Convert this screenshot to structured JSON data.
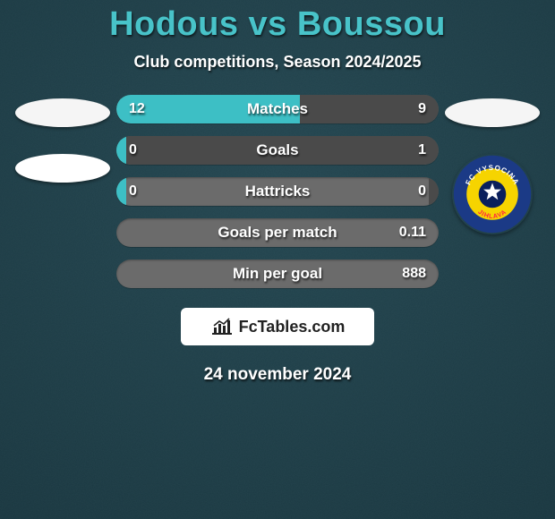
{
  "colors": {
    "bg_main": "#1a3740",
    "bg_noise": "#244650",
    "title_color": "#48c3c9",
    "subtitle_color": "#ffffff",
    "row_bg": "#6b6b6b",
    "fill_left": "#3dbfc5",
    "fill_right": "#4a4a4a",
    "branding_bg": "#ffffff",
    "branding_text": "#222222",
    "ellipse_left_1": "#f5f5f5",
    "ellipse_left_2": "#ffffff",
    "ellipse_right_1": "#f5f5f5",
    "club_ring": "#1b3a86",
    "club_inner": "#f6d400",
    "club_text": "#ffffff",
    "club_ball": "#0a1f5c"
  },
  "title": "Hodous vs Boussou",
  "subtitle": "Club competitions, Season 2024/2025",
  "rows": [
    {
      "label": "Matches",
      "left": "12",
      "right": "9",
      "left_pct": 57,
      "right_pct": 43
    },
    {
      "label": "Goals",
      "left": "0",
      "right": "1",
      "left_pct": 3,
      "right_pct": 97
    },
    {
      "label": "Hattricks",
      "left": "0",
      "right": "0",
      "left_pct": 3,
      "right_pct": 3
    },
    {
      "label": "Goals per match",
      "left": "",
      "right": "0.11",
      "left_pct": 0,
      "right_pct": 0
    },
    {
      "label": "Min per goal",
      "left": "",
      "right": "888",
      "left_pct": 0,
      "right_pct": 0
    }
  ],
  "branding": "FcTables.com",
  "date": "24 november 2024",
  "club_name_top": "FC VYSOCINA",
  "club_name_bottom": "JIHLAVA"
}
